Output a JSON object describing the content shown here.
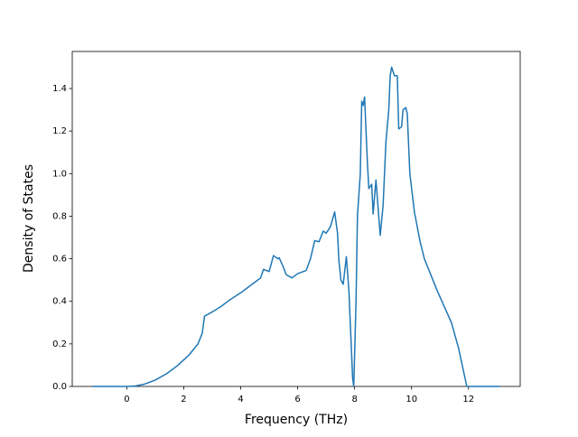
{
  "chart_data": {
    "type": "line",
    "xlabel": "Frequency (THz)",
    "ylabel": "Density of States",
    "x": [
      -1.2,
      0,
      0.3,
      0.6,
      1,
      1.4,
      1.8,
      2.2,
      2.5,
      2.65,
      2.73,
      3,
      3.3,
      3.6,
      4,
      4.4,
      4.7,
      4.8,
      5.0,
      5.15,
      5.3,
      5.35,
      5.5,
      5.6,
      5.8,
      6.0,
      6.3,
      6.45,
      6.6,
      6.75,
      6.9,
      7.0,
      7.15,
      7.3,
      7.4,
      7.45,
      7.52,
      7.6,
      7.71,
      7.8,
      7.88,
      7.93,
      7.97,
      8.05,
      8.1,
      8.2,
      8.25,
      8.3,
      8.35,
      8.45,
      8.5,
      8.6,
      8.65,
      8.75,
      8.9,
      9.0,
      9.1,
      9.2,
      9.25,
      9.3,
      9.4,
      9.5,
      9.55,
      9.65,
      9.7,
      9.8,
      9.85,
      9.94,
      10.1,
      10.3,
      10.45,
      10.9,
      11.4,
      11.65,
      11.94,
      13.1
    ],
    "series": [
      {
        "color": "#1f77b4",
        "values": [
          0,
          0,
          0.002,
          0.01,
          0.03,
          0.06,
          0.1,
          0.15,
          0.2,
          0.25,
          0.33,
          0.35,
          0.375,
          0.405,
          0.44,
          0.48,
          0.51,
          0.55,
          0.54,
          0.615,
          0.6,
          0.605,
          0.56,
          0.525,
          0.51,
          0.53,
          0.545,
          0.6,
          0.685,
          0.68,
          0.73,
          0.72,
          0.75,
          0.82,
          0.72,
          0.59,
          0.5,
          0.48,
          0.61,
          0.45,
          0.2,
          0.04,
          0.0,
          0.4,
          0.8,
          1.0,
          1.34,
          1.32,
          1.36,
          1.05,
          0.93,
          0.95,
          0.81,
          0.97,
          0.71,
          0.85,
          1.15,
          1.3,
          1.46,
          1.5,
          1.46,
          1.46,
          1.21,
          1.22,
          1.3,
          1.31,
          1.28,
          1.0,
          0.82,
          0.68,
          0.6,
          0.45,
          0.3,
          0.18,
          0,
          0
        ]
      }
    ],
    "xlim": [
      -1.915,
      13.815
    ],
    "ylim": [
      0,
      1.574
    ],
    "xticks": [
      0,
      2,
      4,
      6,
      8,
      10,
      12
    ],
    "yticks": [
      {
        "value": 0,
        "label": "0.0"
      },
      0.2,
      0.4,
      0.6,
      0.8,
      {
        "value": 1,
        "label": "1.0"
      },
      1.2,
      1.4
    ]
  }
}
